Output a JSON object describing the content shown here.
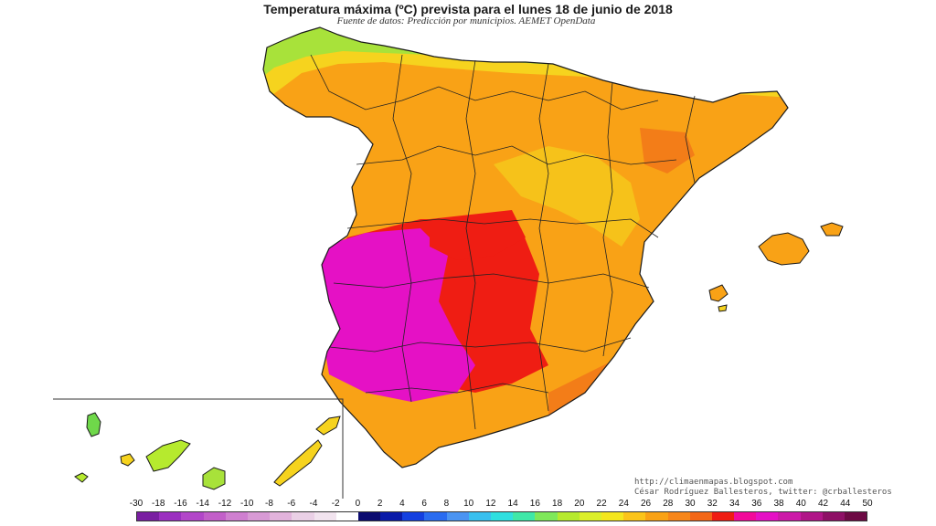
{
  "header": {
    "title": "Temperatura máxima (ºC) prevista para el lunes 18 de junio de 2018",
    "subtitle": "Fuente de datos: Predicción por municipios. AEMET OpenData"
  },
  "credits": {
    "line1": "http://climaenmapas.blogspot.com",
    "line2": "César Rodríguez Ballesteros, twitter: @crballesteros"
  },
  "legend": {
    "labels": [
      "-30",
      "-18",
      "-16",
      "-14",
      "-12",
      "-10",
      "-8",
      "-6",
      "-4",
      "-2",
      "0",
      "2",
      "4",
      "6",
      "8",
      "10",
      "12",
      "14",
      "16",
      "18",
      "20",
      "22",
      "24",
      "26",
      "28",
      "30",
      "32",
      "34",
      "36",
      "38",
      "40",
      "42",
      "44",
      "50"
    ],
    "colors": [
      "#7a1fa2",
      "#9b2fc0",
      "#b246c9",
      "#c25fc9",
      "#cf7fd0",
      "#d89ad5",
      "#e2b3dc",
      "#ead0e6",
      "#f2e4ef",
      "#ffffff",
      "#0b0b70",
      "#0a1aa8",
      "#1440e0",
      "#2a6cf0",
      "#4b94f2",
      "#39c0ef",
      "#2fe0e0",
      "#3fe8a8",
      "#7fe85a",
      "#b6ea2e",
      "#dcef2a",
      "#f4e61e",
      "#fbc41a",
      "#f9a216",
      "#f7861a",
      "#f36718",
      "#ef1d13",
      "#f20a9a",
      "#e511c5",
      "#cc1aa8",
      "#b01688",
      "#8e1066",
      "#6d0a44"
    ]
  },
  "map_colors": {
    "sea": "#ffffff",
    "border": "#1a1a1a",
    "green_north": "#a8e23a",
    "yellow": "#f6d31e",
    "orange": "#f9a216",
    "dark_orange": "#f37d18",
    "red": "#ef1d13",
    "magenta": "#e511c5"
  }
}
